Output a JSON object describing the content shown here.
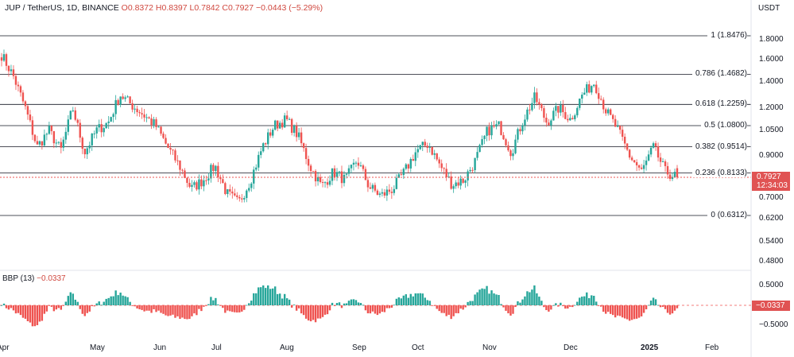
{
  "header": {
    "symbol": "JUP / TetherUS, 1D, BINANCE",
    "open": "O0.8372",
    "high": "H0.8397",
    "low": "L0.7842",
    "close": "C0.7927",
    "change": "−0.0443 (−5.29%)"
  },
  "currency": "USDT",
  "colors": {
    "up": "#26a69a",
    "down": "#ef5350",
    "fib_line": "#131722",
    "price_box": "#e05353"
  },
  "price_box": {
    "price": "0.7927",
    "countdown": "12:34:03"
  },
  "indicator": {
    "name": "BBP (13)",
    "value": "−0.0337",
    "box": "−0.0337"
  },
  "fib_levels": [
    {
      "label": "1 (1.8476)",
      "value": 1.8476
    },
    {
      "label": "0.786 (1.4682)",
      "value": 1.4682
    },
    {
      "label": "0.618 (1.2259)",
      "value": 1.2259
    },
    {
      "label": "0.5 (1.0800)",
      "value": 1.08
    },
    {
      "label": "0.382 (0.9514)",
      "value": 0.9514
    },
    {
      "label": "0.236 (0.8133)",
      "value": 0.8133
    },
    {
      "label": "0 (0.6312)",
      "value": 0.6312
    }
  ],
  "y_ticks": [
    "1.8000",
    "1.6000",
    "1.4000",
    "1.2000",
    "1.0500",
    "0.9000",
    "0.7000",
    "0.6200",
    "0.5400",
    "0.4800"
  ],
  "bbp_ticks": [
    "0.5000",
    "−0.5000"
  ],
  "x_ticks": [
    {
      "label": "Apr",
      "bold": false
    },
    {
      "label": "May",
      "bold": false
    },
    {
      "label": "Jun",
      "bold": false
    },
    {
      "label": "Jul",
      "bold": false
    },
    {
      "label": "Aug",
      "bold": false
    },
    {
      "label": "Sep",
      "bold": false
    },
    {
      "label": "Oct",
      "bold": false
    },
    {
      "label": "Nov",
      "bold": false
    },
    {
      "label": "Dec",
      "bold": false
    },
    {
      "label": "2025",
      "bold": true
    },
    {
      "label": "Feb",
      "bold": false
    }
  ],
  "chart_data": {
    "type": "candlestick",
    "title": "JUP / TetherUS, 1D, BINANCE",
    "y_scale": "log",
    "grid": false,
    "series": [
      {
        "name": "JUP / TetherUS",
        "close_path": [
          [
            "Apr",
            1.65
          ],
          [
            "Apr",
            1.45
          ],
          [
            "Apr",
            1.2
          ],
          [
            "Apr",
            0.95
          ],
          [
            "Apr",
            1.05
          ],
          [
            "Apr",
            0.93
          ],
          [
            "May",
            1.2
          ],
          [
            "May",
            0.92
          ],
          [
            "May",
            1.05
          ],
          [
            "May",
            1.1
          ],
          [
            "May",
            1.3
          ],
          [
            "May",
            1.22
          ],
          [
            "May",
            1.15
          ],
          [
            "Jun",
            1.08
          ],
          [
            "Jun",
            0.95
          ],
          [
            "Jun",
            0.85
          ],
          [
            "Jun",
            0.74
          ],
          [
            "Jun",
            0.78
          ],
          [
            "Jun",
            0.85
          ],
          [
            "Jul",
            0.72
          ],
          [
            "Jul",
            0.68
          ],
          [
            "Jul",
            0.78
          ],
          [
            "Jul",
            0.95
          ],
          [
            "Jul",
            1.08
          ],
          [
            "Jul",
            1.12
          ],
          [
            "Aug",
            1.02
          ],
          [
            "Aug",
            0.85
          ],
          [
            "Aug",
            0.75
          ],
          [
            "Aug",
            0.82
          ],
          [
            "Aug",
            0.78
          ],
          [
            "Aug",
            0.88
          ],
          [
            "Sep",
            0.75
          ],
          [
            "Sep",
            0.71
          ],
          [
            "Sep",
            0.74
          ],
          [
            "Sep",
            0.82
          ],
          [
            "Sep",
            0.93
          ],
          [
            "Sep",
            0.97
          ],
          [
            "Oct",
            0.85
          ],
          [
            "Oct",
            0.76
          ],
          [
            "Oct",
            0.78
          ],
          [
            "Oct",
            0.88
          ],
          [
            "Oct",
            1.05
          ],
          [
            "Oct",
            1.08
          ],
          [
            "Nov",
            0.92
          ],
          [
            "Nov",
            1.12
          ],
          [
            "Nov",
            1.28
          ],
          [
            "Nov",
            1.1
          ],
          [
            "Nov",
            1.2
          ],
          [
            "Nov",
            1.12
          ],
          [
            "Dec",
            1.3
          ],
          [
            "Dec",
            1.4
          ],
          [
            "Dec",
            1.18
          ],
          [
            "Dec",
            1.05
          ],
          [
            "Dec",
            0.9
          ],
          [
            "Dec",
            0.82
          ],
          [
            "2025",
            0.95
          ],
          [
            "2025",
            0.82
          ],
          [
            "2025",
            0.7927
          ]
        ]
      },
      {
        "name": "BBP (13)",
        "note": "oscillator around 0, last value −0.0337"
      }
    ]
  }
}
